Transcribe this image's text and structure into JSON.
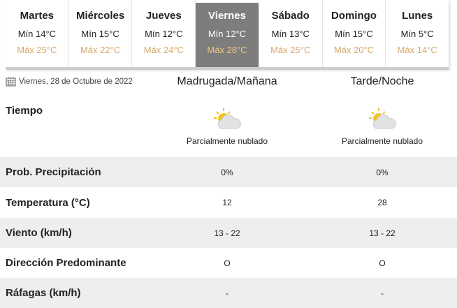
{
  "days": [
    {
      "day": "Martes",
      "min": "Mín 14°C",
      "max": "Máx 25°C"
    },
    {
      "day": "Miércoles",
      "min": "Mín 15°C",
      "max": "Máx 22°C"
    },
    {
      "day": "Jueves",
      "min": "Mín 12°C",
      "max": "Máx 24°C"
    },
    {
      "day": "Viernes",
      "min": "Mín 12°C",
      "max": "Máx 28°C",
      "active": true
    },
    {
      "day": "Sábado",
      "min": "Mín 13°C",
      "max": "Máx 25°C"
    },
    {
      "day": "Domingo",
      "min": "Mín 15°C",
      "max": "Máx 20°C"
    },
    {
      "day": "Lunes",
      "min": "Mín 5°C",
      "max": "Máx 14°C"
    }
  ],
  "date": "Viernes, 28 de Octubre de 2022",
  "columns": [
    "Madrugada/Mañana",
    "Tarde/Noche"
  ],
  "rows": [
    {
      "label": "Tiempo",
      "values": [
        "Parcialmente nublado",
        "Parcialmente nublado"
      ],
      "icon": "partly-cloudy-icon"
    },
    {
      "label": "Prob. Precipitación",
      "values": [
        "0%",
        "0%"
      ]
    },
    {
      "label": "Temperatura (°C)",
      "values": [
        "12",
        "28"
      ]
    },
    {
      "label": "Viento (km/h)",
      "values": [
        "13 - 22",
        "13 - 22"
      ]
    },
    {
      "label": "Dirección Predominante",
      "values": [
        "O",
        "O"
      ]
    },
    {
      "label": "Ráfagas (km/h)",
      "values": [
        "-",
        "-"
      ]
    }
  ],
  "colors": {
    "active_tab": "#7d7d7d",
    "max_temp": "#d4a86a",
    "stripe": "#eeeeee"
  }
}
